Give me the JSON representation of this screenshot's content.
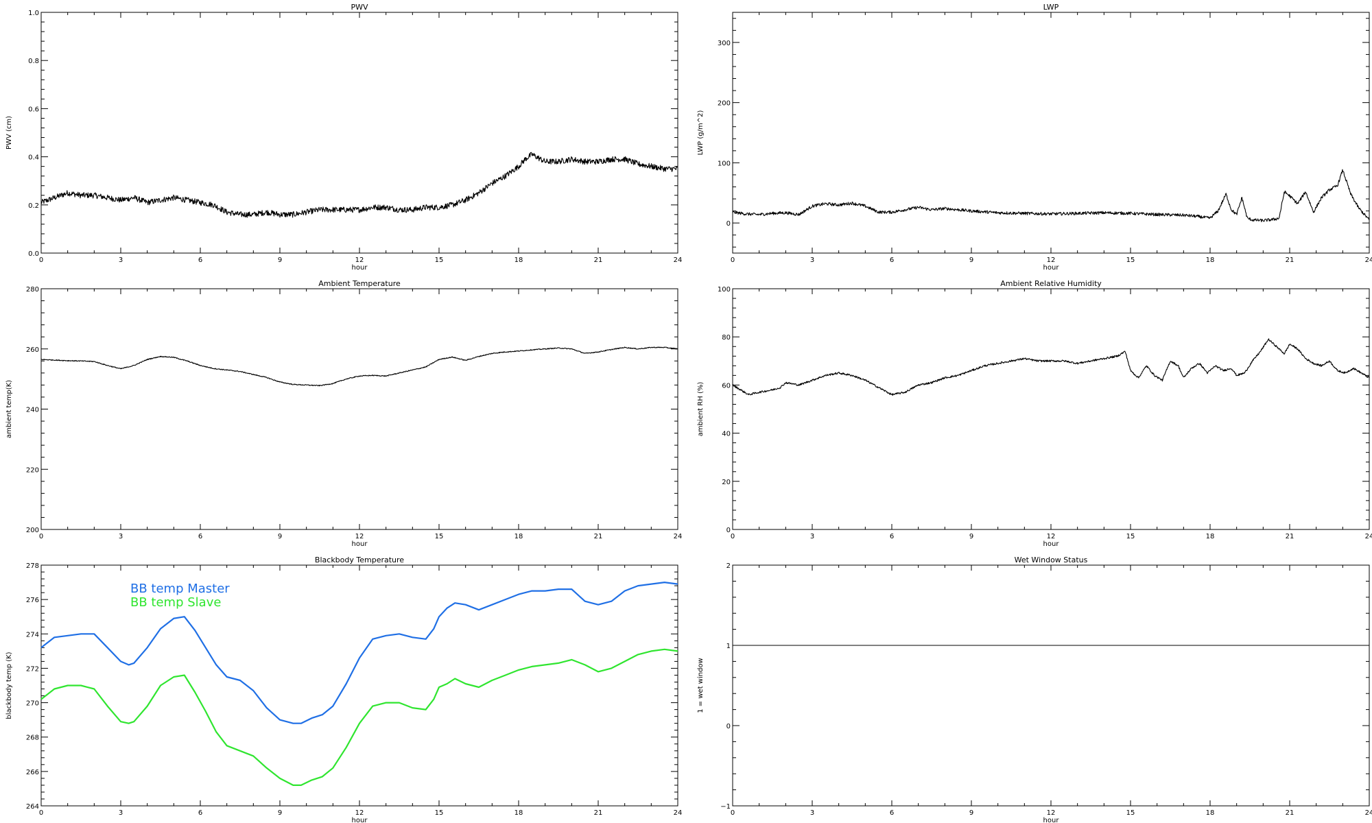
{
  "chart_data": [
    {
      "id": "pwv",
      "type": "line",
      "title": "PWV",
      "xlabel": "hour",
      "ylabel": "PWV (cm)",
      "xlim": [
        0,
        24
      ],
      "ylim": [
        0,
        1.0
      ],
      "xticks": [
        "0",
        "3",
        "6",
        "9",
        "12",
        "15",
        "18",
        "21",
        "24"
      ],
      "yticks": [
        "0.0",
        "0.2",
        "0.4",
        "0.6",
        "0.8",
        "1.0"
      ],
      "grid": false,
      "noise": 0.012,
      "series": [
        {
          "color": "#000000",
          "x": [
            0,
            0.5,
            1,
            1.5,
            2,
            2.5,
            3,
            3.5,
            4,
            4.5,
            5,
            5.5,
            6,
            6.5,
            7,
            7.5,
            8,
            8.5,
            9,
            9.5,
            10,
            10.5,
            11,
            11.5,
            12,
            12.5,
            13,
            13.5,
            14,
            14.5,
            15,
            15.5,
            16,
            16.5,
            17,
            17.5,
            18,
            18.25,
            18.5,
            19,
            19.5,
            20,
            20.5,
            21,
            21.5,
            22,
            22.5,
            23,
            23.5,
            24
          ],
          "y": [
            0.21,
            0.23,
            0.25,
            0.24,
            0.24,
            0.23,
            0.22,
            0.23,
            0.21,
            0.22,
            0.23,
            0.22,
            0.21,
            0.2,
            0.17,
            0.16,
            0.16,
            0.17,
            0.16,
            0.16,
            0.17,
            0.18,
            0.18,
            0.18,
            0.18,
            0.19,
            0.19,
            0.18,
            0.18,
            0.19,
            0.19,
            0.2,
            0.22,
            0.25,
            0.29,
            0.32,
            0.36,
            0.39,
            0.41,
            0.38,
            0.38,
            0.39,
            0.38,
            0.38,
            0.39,
            0.39,
            0.37,
            0.36,
            0.35,
            0.35
          ]
        }
      ]
    },
    {
      "id": "lwp",
      "type": "line",
      "title": "LWP",
      "xlabel": "hour",
      "ylabel": "LWP (g/m^2)",
      "xlim": [
        0,
        24
      ],
      "ylim": [
        -50,
        350
      ],
      "xticks": [
        "0",
        "3",
        "6",
        "9",
        "12",
        "15",
        "18",
        "21",
        "24"
      ],
      "yticks": [
        "0",
        "100",
        "200",
        "300"
      ],
      "ytick_values": [
        0,
        100,
        200,
        300
      ],
      "grid": false,
      "noise": 2.5,
      "series": [
        {
          "color": "#000000",
          "x": [
            0,
            0.5,
            1,
            1.5,
            2,
            2.5,
            3,
            3.5,
            4,
            4.5,
            5,
            5.5,
            6,
            6.5,
            7,
            7.5,
            8,
            9,
            10,
            11,
            12,
            13,
            14,
            15,
            16,
            17,
            17.5,
            18,
            18.3,
            18.6,
            18.8,
            19,
            19.2,
            19.4,
            19.6,
            20,
            20.4,
            20.6,
            20.8,
            21,
            21.3,
            21.6,
            21.9,
            22.2,
            22.5,
            22.8,
            23,
            23.3,
            23.6,
            24
          ],
          "y": [
            18,
            15,
            14,
            16,
            17,
            14,
            28,
            32,
            30,
            33,
            28,
            18,
            18,
            22,
            26,
            22,
            24,
            20,
            17,
            16,
            15,
            16,
            17,
            16,
            14,
            13,
            11,
            8,
            20,
            48,
            22,
            14,
            42,
            8,
            5,
            4,
            6,
            8,
            52,
            45,
            32,
            52,
            18,
            42,
            55,
            62,
            88,
            48,
            25,
            5
          ]
        }
      ]
    },
    {
      "id": "ambient-temp",
      "type": "line",
      "title": "Ambient Temperature",
      "xlabel": "hour",
      "ylabel": "ambient temp(K)",
      "xlim": [
        0,
        24
      ],
      "ylim": [
        200,
        280
      ],
      "xticks": [
        "0",
        "3",
        "6",
        "9",
        "12",
        "15",
        "18",
        "21",
        "24"
      ],
      "yticks": [
        "200",
        "220",
        "240",
        "260",
        "280"
      ],
      "grid": false,
      "noise": 0.15,
      "series": [
        {
          "color": "#000000",
          "x": [
            0,
            0.5,
            1,
            1.5,
            2,
            2.5,
            3,
            3.5,
            4,
            4.5,
            5,
            5.5,
            6,
            6.5,
            7,
            7.5,
            8,
            8.5,
            9,
            9.5,
            10,
            10.5,
            11,
            11.5,
            12,
            12.5,
            13,
            13.5,
            14,
            14.5,
            15,
            15.5,
            16,
            16.5,
            17,
            17.5,
            18,
            18.5,
            19,
            19.5,
            20,
            20.5,
            21,
            21.5,
            22,
            22.5,
            23,
            23.5,
            24
          ],
          "y": [
            256.5,
            256.3,
            256.1,
            256.0,
            255.8,
            254.5,
            253.4,
            254.5,
            256.5,
            257.5,
            257.2,
            256.0,
            254.5,
            253.5,
            253.0,
            252.5,
            251.5,
            250.5,
            249.0,
            248.2,
            248.0,
            247.8,
            248.5,
            250.0,
            251.0,
            251.2,
            251.0,
            252.0,
            253.0,
            254.0,
            256.5,
            257.3,
            256.2,
            257.5,
            258.5,
            259.0,
            259.3,
            259.7,
            260.0,
            260.3,
            260.0,
            258.5,
            259.0,
            259.8,
            260.5,
            260.0,
            260.5,
            260.5,
            260.0
          ]
        }
      ]
    },
    {
      "id": "ambient-rh",
      "type": "line",
      "title": "Ambient Relative Humidity",
      "xlabel": "hour",
      "ylabel": "ambient RH (%)",
      "xlim": [
        0,
        24
      ],
      "ylim": [
        0,
        100
      ],
      "xticks": [
        "0",
        "3",
        "6",
        "9",
        "12",
        "15",
        "18",
        "21",
        "24"
      ],
      "yticks": [
        "0",
        "20",
        "40",
        "60",
        "80",
        "100"
      ],
      "grid": false,
      "noise": 0.4,
      "series": [
        {
          "color": "#000000",
          "x": [
            0,
            0.3,
            0.6,
            1,
            1.5,
            1.8,
            2,
            2.5,
            3,
            3.5,
            4,
            4.5,
            5,
            5.5,
            6,
            6.5,
            7,
            7.5,
            8,
            8.5,
            9,
            9.5,
            10,
            10.5,
            11,
            11.5,
            12,
            12.5,
            13,
            13.5,
            14,
            14.5,
            14.8,
            15,
            15.3,
            15.6,
            15.9,
            16.2,
            16.5,
            16.8,
            17,
            17.3,
            17.6,
            17.9,
            18.2,
            18.5,
            18.8,
            19,
            19.3,
            19.6,
            19.9,
            20.2,
            20.5,
            20.8,
            21,
            21.3,
            21.6,
            21.9,
            22.2,
            22.5,
            22.8,
            23.1,
            23.4,
            23.7,
            24
          ],
          "y": [
            60,
            58,
            56,
            57,
            58,
            59,
            61,
            60,
            62,
            64,
            65,
            64,
            62,
            59,
            56,
            57,
            60,
            61,
            63,
            64,
            66,
            68,
            69,
            70,
            71,
            70,
            70,
            70,
            69,
            70,
            71,
            72,
            74,
            66,
            63,
            68,
            64,
            62,
            70,
            68,
            63,
            67,
            69,
            65,
            68,
            66,
            67,
            64,
            65,
            70,
            74,
            79,
            76,
            73,
            77,
            75,
            71,
            69,
            68,
            70,
            66,
            65,
            67,
            65,
            63
          ]
        }
      ]
    },
    {
      "id": "blackbody-temp",
      "type": "line",
      "title": "Blackbody Temperature",
      "xlabel": "hour",
      "ylabel": "blackbody temp (K)",
      "xlim": [
        0,
        24
      ],
      "ylim": [
        264,
        278
      ],
      "xticks": [
        "0",
        "3",
        "6",
        "9",
        "12",
        "15",
        "18",
        "21",
        "24"
      ],
      "yticks": [
        "264",
        "266",
        "268",
        "270",
        "272",
        "274",
        "276",
        "278"
      ],
      "ytick_values": [
        264,
        266,
        268,
        270,
        272,
        274,
        276,
        278
      ],
      "grid": false,
      "noise": 0,
      "legend_position": "top-left",
      "series": [
        {
          "name": "BB temp Master",
          "color": "#1f6fe5",
          "x": [
            0,
            0.5,
            1,
            1.5,
            2,
            2.5,
            3,
            3.3,
            3.5,
            4,
            4.5,
            5,
            5.4,
            5.8,
            6.2,
            6.6,
            7,
            7.5,
            8,
            8.5,
            9,
            9.5,
            9.8,
            10.2,
            10.6,
            11,
            11.5,
            12,
            12.5,
            13,
            13.5,
            14,
            14.5,
            14.8,
            15,
            15.3,
            15.6,
            16,
            16.5,
            17,
            17.5,
            18,
            18.5,
            19,
            19.5,
            20,
            20.5,
            21,
            21.5,
            22,
            22.5,
            23,
            23.5,
            24
          ],
          "y": [
            273.2,
            273.8,
            273.9,
            274.0,
            274.0,
            273.2,
            272.4,
            272.2,
            272.3,
            273.2,
            274.3,
            274.9,
            275.0,
            274.2,
            273.2,
            272.2,
            271.5,
            271.3,
            270.7,
            269.7,
            269.0,
            268.8,
            268.8,
            269.1,
            269.3,
            269.8,
            271.1,
            272.6,
            273.7,
            273.9,
            274.0,
            273.8,
            273.7,
            274.3,
            275.0,
            275.5,
            275.8,
            275.7,
            275.4,
            275.7,
            276.0,
            276.3,
            276.5,
            276.5,
            276.6,
            276.6,
            275.9,
            275.7,
            275.9,
            276.5,
            276.8,
            276.9,
            277.0,
            276.9
          ]
        },
        {
          "name": "BB temp Slave",
          "color": "#2fe52f",
          "x": [
            0,
            0.5,
            1,
            1.5,
            2,
            2.5,
            3,
            3.3,
            3.5,
            4,
            4.5,
            5,
            5.4,
            5.8,
            6.2,
            6.6,
            7,
            7.5,
            8,
            8.5,
            9,
            9.5,
            9.8,
            10.2,
            10.6,
            11,
            11.5,
            12,
            12.5,
            13,
            13.5,
            14,
            14.5,
            14.8,
            15,
            15.3,
            15.6,
            16,
            16.5,
            17,
            17.5,
            18,
            18.5,
            19,
            19.5,
            20,
            20.5,
            21,
            21.5,
            22,
            22.5,
            23,
            23.5,
            24
          ],
          "y": [
            270.2,
            270.8,
            271.0,
            271.0,
            270.8,
            269.8,
            268.9,
            268.8,
            268.9,
            269.8,
            271.0,
            271.5,
            271.6,
            270.6,
            269.5,
            268.3,
            267.5,
            267.2,
            266.9,
            266.2,
            265.6,
            265.2,
            265.2,
            265.5,
            265.7,
            266.2,
            267.4,
            268.8,
            269.8,
            270.0,
            270.0,
            269.7,
            269.6,
            270.2,
            270.9,
            271.1,
            271.4,
            271.1,
            270.9,
            271.3,
            271.6,
            271.9,
            272.1,
            272.2,
            272.3,
            272.5,
            272.2,
            271.8,
            272.0,
            272.4,
            272.8,
            273.0,
            273.1,
            273.0
          ]
        }
      ]
    },
    {
      "id": "wet-window",
      "type": "line",
      "title": "Wet Window Status",
      "xlabel": "hour",
      "ylabel": "1 = wet window",
      "xlim": [
        0,
        24
      ],
      "ylim": [
        -1,
        2
      ],
      "xticks": [
        "0",
        "3",
        "6",
        "9",
        "12",
        "15",
        "18",
        "21",
        "24"
      ],
      "yticks": [
        "−1",
        "0",
        "1",
        "2"
      ],
      "ytick_values": [
        -1,
        0,
        1,
        2
      ],
      "grid": false,
      "noise": 0,
      "series": [
        {
          "color": "#000000",
          "x": [
            0,
            24
          ],
          "y": [
            1,
            1
          ]
        }
      ]
    }
  ]
}
